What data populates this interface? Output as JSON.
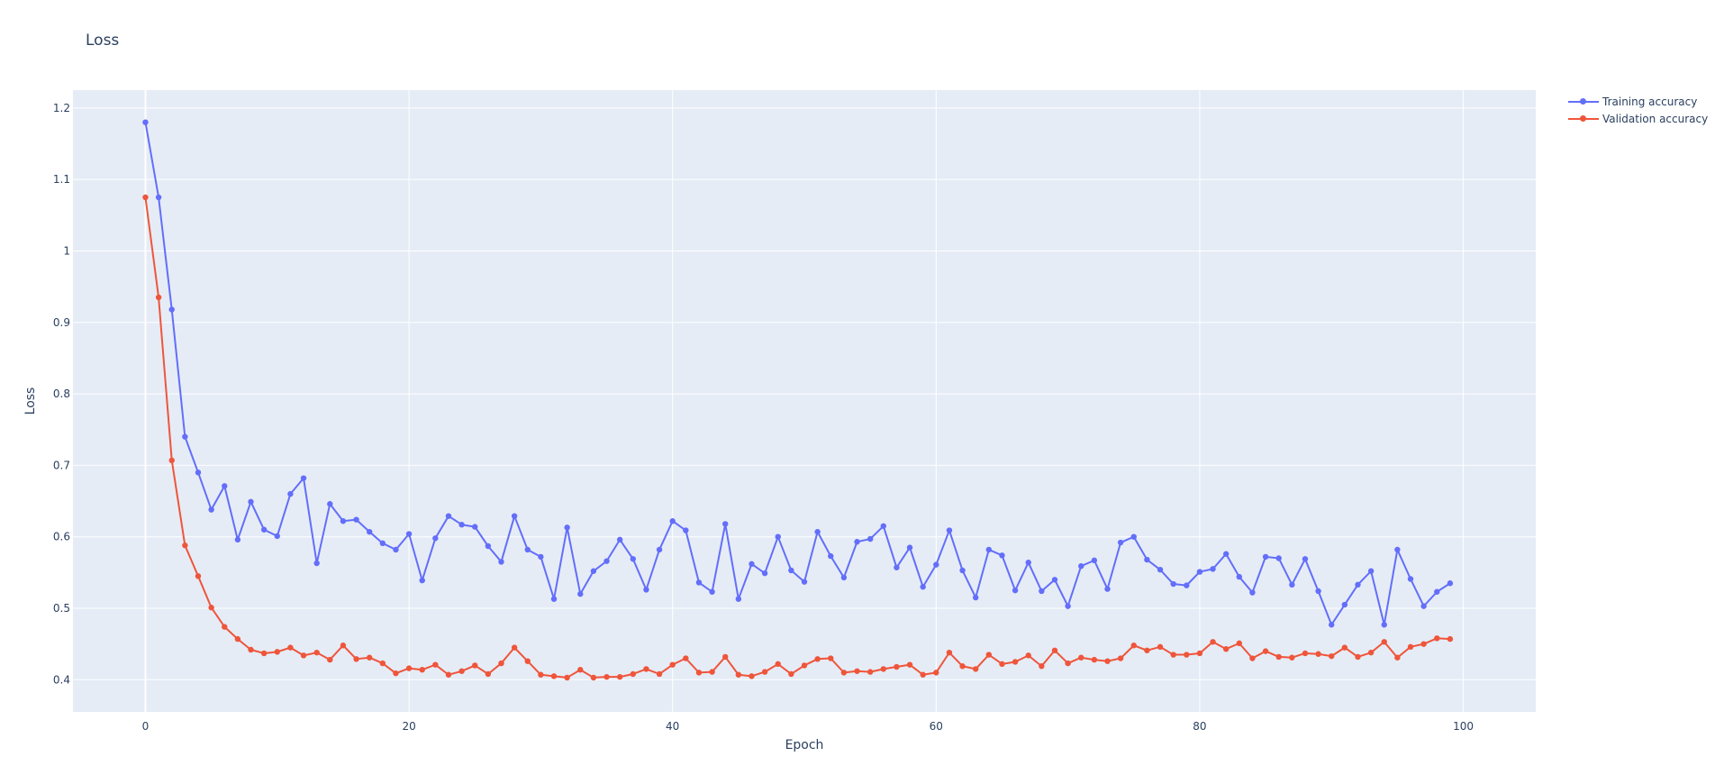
{
  "chart_data": {
    "type": "line",
    "title": "Loss",
    "xlabel": "Epoch",
    "ylabel": "Loss",
    "xlim": [
      -5.5,
      105.5
    ],
    "ylim": [
      0.355,
      1.225
    ],
    "x_ticks": [
      0,
      20,
      40,
      60,
      80,
      100
    ],
    "x_tick_labels": [
      "0",
      "20",
      "40",
      "60",
      "80",
      "100"
    ],
    "y_ticks": [
      0.4,
      0.5,
      0.6,
      0.7,
      0.8,
      0.9,
      1.0,
      1.1,
      1.2
    ],
    "y_tick_labels": [
      "0.4",
      "0.5",
      "0.6",
      "0.7",
      "0.8",
      "0.9",
      "1",
      "1.1",
      "1.2"
    ],
    "grid": true,
    "legend_position": "top-right-outside",
    "background": "#e5ecf6",
    "series": [
      {
        "name": "Training accuracy",
        "color": "#636efa",
        "x": [
          0,
          1,
          2,
          3,
          4,
          5,
          6,
          7,
          8,
          9,
          10,
          11,
          12,
          13,
          14,
          15,
          16,
          17,
          18,
          19,
          20,
          21,
          22,
          23,
          24,
          25,
          26,
          27,
          28,
          29,
          30,
          31,
          32,
          33,
          34,
          35,
          36,
          37,
          38,
          39,
          40,
          41,
          42,
          43,
          44,
          45,
          46,
          47,
          48,
          49,
          50,
          51,
          52,
          53,
          54,
          55,
          56,
          57,
          58,
          59,
          60,
          61,
          62,
          63,
          64,
          65,
          66,
          67,
          68,
          69,
          70,
          71,
          72,
          73,
          74,
          75,
          76,
          77,
          78,
          79,
          80,
          81,
          82,
          83,
          84,
          85,
          86,
          87,
          88,
          89,
          90,
          91,
          92,
          93,
          94,
          95,
          96,
          97,
          98,
          99
        ],
        "y": [
          1.18,
          1.075,
          0.918,
          0.74,
          0.69,
          0.638,
          0.671,
          0.596,
          0.649,
          0.61,
          0.601,
          0.66,
          0.682,
          0.563,
          0.646,
          0.622,
          0.624,
          0.607,
          0.591,
          0.582,
          0.604,
          0.539,
          0.598,
          0.629,
          0.617,
          0.614,
          0.587,
          0.565,
          0.629,
          0.582,
          0.572,
          0.513,
          0.613,
          0.52,
          0.552,
          0.566,
          0.596,
          0.569,
          0.526,
          0.582,
          0.622,
          0.609,
          0.536,
          0.523,
          0.618,
          0.513,
          0.562,
          0.549,
          0.6,
          0.553,
          0.537,
          0.607,
          0.573,
          0.543,
          0.593,
          0.597,
          0.615,
          0.557,
          0.585,
          0.53,
          0.561,
          0.609,
          0.553,
          0.515,
          0.582,
          0.574,
          0.525,
          0.564,
          0.524,
          0.54,
          0.503,
          0.559,
          0.567,
          0.527,
          0.592,
          0.6,
          0.568,
          0.554,
          0.534,
          0.532,
          0.551,
          0.555,
          0.576,
          0.544,
          0.522,
          0.572,
          0.57,
          0.533,
          0.569,
          0.524,
          0.477,
          0.505,
          0.533,
          0.552,
          0.477,
          0.582,
          0.541,
          0.503,
          0.523,
          0.535
        ]
      },
      {
        "name": "Validation accuracy",
        "color": "#ef553b",
        "x": [
          0,
          1,
          2,
          3,
          4,
          5,
          6,
          7,
          8,
          9,
          10,
          11,
          12,
          13,
          14,
          15,
          16,
          17,
          18,
          19,
          20,
          21,
          22,
          23,
          24,
          25,
          26,
          27,
          28,
          29,
          30,
          31,
          32,
          33,
          34,
          35,
          36,
          37,
          38,
          39,
          40,
          41,
          42,
          43,
          44,
          45,
          46,
          47,
          48,
          49,
          50,
          51,
          52,
          53,
          54,
          55,
          56,
          57,
          58,
          59,
          60,
          61,
          62,
          63,
          64,
          65,
          66,
          67,
          68,
          69,
          70,
          71,
          72,
          73,
          74,
          75,
          76,
          77,
          78,
          79,
          80,
          81,
          82,
          83,
          84,
          85,
          86,
          87,
          88,
          89,
          90,
          91,
          92,
          93,
          94,
          95,
          96,
          97,
          98,
          99
        ],
        "y": [
          1.075,
          0.935,
          0.707,
          0.588,
          0.545,
          0.501,
          0.474,
          0.457,
          0.442,
          0.437,
          0.439,
          0.445,
          0.434,
          0.438,
          0.428,
          0.448,
          0.429,
          0.431,
          0.423,
          0.409,
          0.416,
          0.414,
          0.421,
          0.407,
          0.412,
          0.42,
          0.408,
          0.423,
          0.445,
          0.426,
          0.407,
          0.405,
          0.403,
          0.414,
          0.403,
          0.404,
          0.404,
          0.408,
          0.415,
          0.408,
          0.421,
          0.43,
          0.41,
          0.411,
          0.432,
          0.407,
          0.405,
          0.411,
          0.422,
          0.408,
          0.42,
          0.429,
          0.43,
          0.41,
          0.412,
          0.411,
          0.415,
          0.418,
          0.421,
          0.407,
          0.41,
          0.438,
          0.419,
          0.415,
          0.435,
          0.422,
          0.425,
          0.434,
          0.419,
          0.441,
          0.423,
          0.431,
          0.428,
          0.426,
          0.43,
          0.448,
          0.441,
          0.446,
          0.435,
          0.435,
          0.437,
          0.453,
          0.443,
          0.451,
          0.43,
          0.44,
          0.432,
          0.431,
          0.437,
          0.436,
          0.433,
          0.445,
          0.432,
          0.438,
          0.453,
          0.431,
          0.446,
          0.45,
          0.458,
          0.457
        ]
      }
    ]
  }
}
